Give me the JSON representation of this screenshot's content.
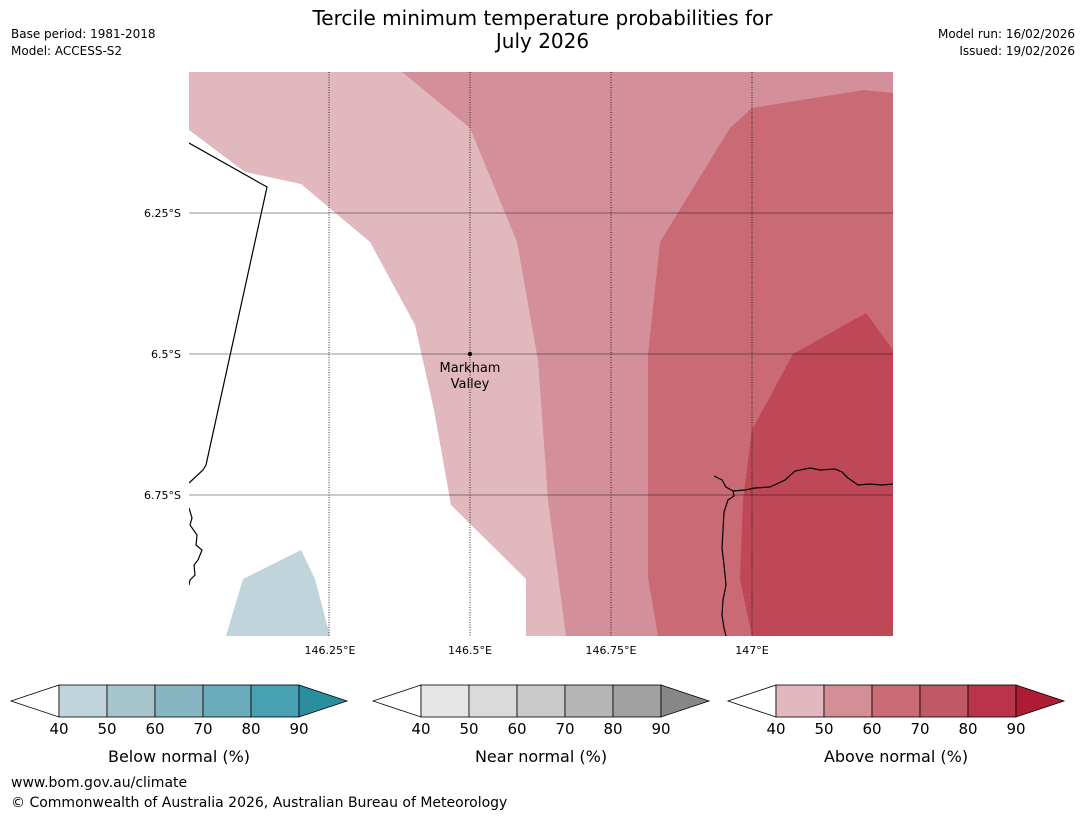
{
  "header": {
    "title_line1": "Tercile minimum temperature probabilities for",
    "title_line2": "July 2026",
    "base_period": "Base period: 1981-2018",
    "model": "Model: ACCESS-S2",
    "model_run": "Model run: 16/02/2026",
    "issued": "Issued: 19/02/2026"
  },
  "map": {
    "lat_labels": [
      "6.25°S",
      "6.5°S",
      "6.75°S"
    ],
    "lon_labels": [
      "146.25°E",
      "146.5°E",
      "146.75°E",
      "147°E"
    ],
    "place": {
      "name_line1": "Markham",
      "name_line2": "Valley"
    },
    "zones": [
      {
        "category": "above",
        "range": "40-50"
      },
      {
        "category": "above",
        "range": "50-60"
      },
      {
        "category": "above",
        "range": "60-70"
      },
      {
        "category": "above",
        "range": "70-80"
      },
      {
        "category": "below",
        "range": "40-50"
      }
    ]
  },
  "colorbars": [
    {
      "label": "Below normal (%)",
      "ticks": [
        "40",
        "50",
        "60",
        "70",
        "80",
        "90"
      ],
      "colors": [
        "#c0d4dc",
        "#a5c4cb",
        "#87b5c2",
        "#6aacbb",
        "#47a1b1",
        "#2a8e9f"
      ]
    },
    {
      "label": "Near normal (%)",
      "ticks": [
        "40",
        "50",
        "60",
        "70",
        "80",
        "90"
      ],
      "colors": [
        "#e6e6e6",
        "#dadada",
        "#c9c9c9",
        "#b5b5b5",
        "#a1a1a1",
        "#878787"
      ]
    },
    {
      "label": "Above normal (%)",
      "ticks": [
        "40",
        "50",
        "60",
        "70",
        "80",
        "90"
      ],
      "colors": [
        "#e0b8bd",
        "#d48e96",
        "#c96a75",
        "#c05865",
        "#b9344a",
        "#ad1b35"
      ]
    }
  ],
  "footer": {
    "url": "www.bom.gov.au/climate",
    "copyright": "© Commonwealth of Australia 2026, Australian Bureau of Meteorology"
  }
}
